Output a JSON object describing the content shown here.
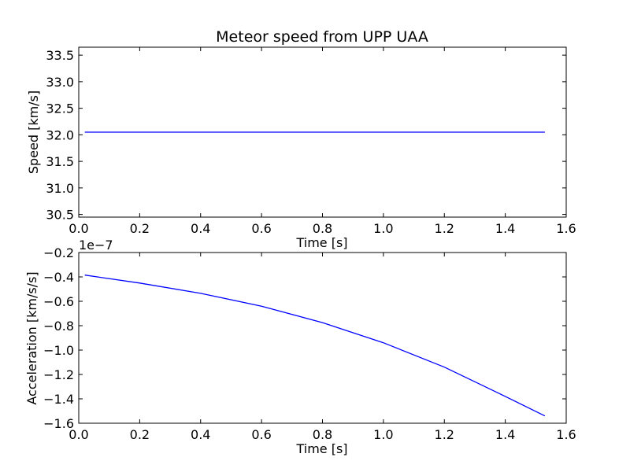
{
  "chart_data": [
    {
      "type": "line",
      "title": "Meteor speed from  UPP UAA",
      "xlabel": "Time [s]",
      "ylabel": "Speed [km/s]",
      "xlim": [
        0.0,
        1.6
      ],
      "ylim": [
        30.45,
        33.65
      ],
      "xticks": [
        "0.0",
        "0.2",
        "0.4",
        "0.6",
        "0.8",
        "1.0",
        "1.2",
        "1.4",
        "1.6"
      ],
      "yticks": [
        "30.5",
        "31.0",
        "31.5",
        "32.0",
        "32.5",
        "33.0",
        "33.5"
      ],
      "grid": false,
      "line_color": "#0000ff",
      "series": [
        {
          "x": [
            0.02,
            0.2,
            0.4,
            0.6,
            0.8,
            1.0,
            1.2,
            1.4,
            1.53
          ],
          "y": [
            32.05,
            32.05,
            32.05,
            32.05,
            32.05,
            32.05,
            32.05,
            32.05,
            32.05
          ]
        }
      ]
    },
    {
      "type": "line",
      "title": "",
      "xlabel": "Time [s]",
      "ylabel": "Acceleration [km/s/s]",
      "offset_text": "1e−7",
      "xlim": [
        0.0,
        1.6
      ],
      "ylim": [
        -1.6,
        -0.2
      ],
      "xticks": [
        "0.0",
        "0.2",
        "0.4",
        "0.6",
        "0.8",
        "1.0",
        "1.2",
        "1.4",
        "1.6"
      ],
      "yticks": [
        "−1.6",
        "−1.4",
        "−1.2",
        "−1.0",
        "−0.8",
        "−0.6",
        "−0.4",
        "−0.2"
      ],
      "grid": false,
      "line_color": "#0000ff",
      "series": [
        {
          "x": [
            0.02,
            0.2,
            0.4,
            0.6,
            0.8,
            1.0,
            1.2,
            1.4,
            1.53
          ],
          "y": [
            -0.385,
            -0.45,
            -0.535,
            -0.64,
            -0.775,
            -0.94,
            -1.14,
            -1.38,
            -1.54
          ]
        }
      ]
    }
  ]
}
